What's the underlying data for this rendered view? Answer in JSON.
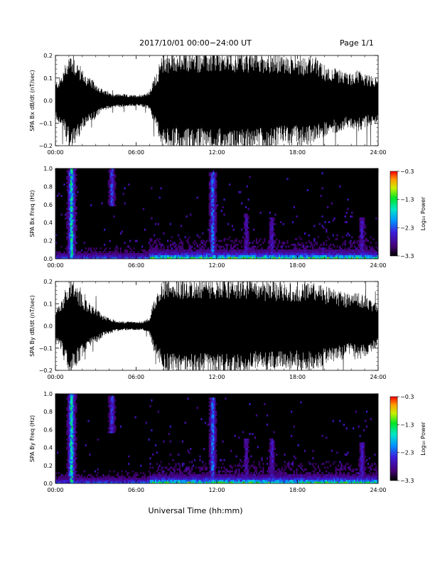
{
  "header": {
    "title": "2017/10/01   00:00−24:00 UT",
    "page": "Page 1/1"
  },
  "x_axis_title": "Universal Time (hh:mm)",
  "colors": {
    "trace": "#000000",
    "background": "#ffffff"
  },
  "chart_data": [
    {
      "type": "line",
      "ylabel": "SPA Bx dB/dt (nT/sec)",
      "xlim": [
        0,
        24
      ],
      "ylim": [
        -0.2,
        0.2
      ],
      "x_ticks": [
        "00:00",
        "06:00",
        "12:00",
        "18:00",
        "24:00"
      ],
      "y_ticks": [
        "0.2",
        "0.1",
        "0.0",
        "−0.1",
        "−0.2"
      ],
      "envelope": {
        "hours": [
          0,
          0.5,
          0.9,
          1.1,
          1.4,
          1.8,
          2.2,
          2.6,
          3.0,
          3.5,
          4.0,
          4.5,
          5.0,
          5.5,
          6.0,
          6.5,
          7.0,
          7.3,
          7.6,
          8.0,
          9.0,
          10.0,
          11.0,
          12.0,
          13.0,
          14.0,
          15.0,
          16.0,
          17.0,
          18.0,
          19.0,
          20.0,
          21.0,
          22.0,
          22.5,
          23.0,
          24.0
        ],
        "amplitude": [
          0.08,
          0.12,
          0.2,
          0.22,
          0.2,
          0.16,
          0.12,
          0.1,
          0.08,
          0.05,
          0.035,
          0.03,
          0.03,
          0.025,
          0.025,
          0.03,
          0.04,
          0.1,
          0.14,
          0.22,
          0.22,
          0.22,
          0.22,
          0.22,
          0.22,
          0.22,
          0.22,
          0.22,
          0.2,
          0.2,
          0.2,
          0.16,
          0.14,
          0.12,
          0.14,
          0.12,
          0.1
        ]
      }
    },
    {
      "type": "heatmap",
      "ylabel": "SPA Bx Freq (Hz)",
      "xlim": [
        0,
        24
      ],
      "ylim": [
        0,
        1.0
      ],
      "x_ticks": [
        "00:00",
        "06:00",
        "12:00",
        "18:00",
        "24:00"
      ],
      "y_ticks": [
        "1.0",
        "0.8",
        "0.6",
        "0.4",
        "0.2",
        "0.0"
      ],
      "colorbar": {
        "label": "Log₁₀ Power",
        "range": [
          -3.3,
          -0.3
        ],
        "ticks": [
          "−0.3",
          "−1.3",
          "−2.3",
          "−3.3"
        ]
      },
      "features": [
        {
          "hour": 1.2,
          "fmax": 1.0,
          "level": 0.8
        },
        {
          "hour": 4.2,
          "fmin": 0.58,
          "fmax": 1.0,
          "level": 0.45
        },
        {
          "hour": 11.7,
          "fmax": 0.95,
          "level": 0.55
        },
        {
          "hour": 14.2,
          "fmax": 0.5,
          "level": 0.3
        },
        {
          "hour": 16.1,
          "fmax": 0.45,
          "level": 0.35
        },
        {
          "hour": 22.8,
          "fmax": 0.45,
          "level": 0.35
        }
      ]
    },
    {
      "type": "line",
      "ylabel": "SPA By dB/dt (nT/sec)",
      "xlim": [
        0,
        24
      ],
      "ylim": [
        -0.2,
        0.2
      ],
      "x_ticks": [
        "00:00",
        "06:00",
        "12:00",
        "18:00",
        "24:00"
      ],
      "y_ticks": [
        "0.2",
        "0.1",
        "0.0",
        "−0.1",
        "−0.2"
      ],
      "envelope": {
        "hours": [
          0,
          0.5,
          0.9,
          1.1,
          1.4,
          1.8,
          2.2,
          2.6,
          3.0,
          3.5,
          4.0,
          4.5,
          5.0,
          5.5,
          6.0,
          6.5,
          7.0,
          7.3,
          7.6,
          8.0,
          9.0,
          10.0,
          11.0,
          12.0,
          13.0,
          14.0,
          15.0,
          16.0,
          17.0,
          18.0,
          19.0,
          20.0,
          21.0,
          22.0,
          22.5,
          23.0,
          24.0
        ],
        "amplitude": [
          0.08,
          0.12,
          0.2,
          0.22,
          0.2,
          0.16,
          0.12,
          0.1,
          0.08,
          0.05,
          0.035,
          0.025,
          0.02,
          0.02,
          0.02,
          0.02,
          0.04,
          0.12,
          0.16,
          0.22,
          0.22,
          0.22,
          0.22,
          0.22,
          0.22,
          0.22,
          0.2,
          0.2,
          0.2,
          0.2,
          0.2,
          0.18,
          0.16,
          0.14,
          0.16,
          0.14,
          0.1
        ]
      }
    },
    {
      "type": "heatmap",
      "ylabel": "SPA By Freq (Hz)",
      "xlim": [
        0,
        24
      ],
      "ylim": [
        0,
        1.0
      ],
      "x_ticks": [
        "00:00",
        "06:00",
        "12:00",
        "18:00",
        "24:00"
      ],
      "y_ticks": [
        "1.0",
        "0.8",
        "0.6",
        "0.4",
        "0.2",
        "0.0"
      ],
      "colorbar": {
        "label": "Log₁₀ Power",
        "range": [
          -3.3,
          -0.3
        ],
        "ticks": [
          "−0.3",
          "−1.3",
          "−2.3",
          "−3.3"
        ]
      },
      "features": [
        {
          "hour": 1.2,
          "fmax": 1.0,
          "level": 0.8
        },
        {
          "hour": 4.2,
          "fmin": 0.56,
          "fmax": 0.98,
          "level": 0.45
        },
        {
          "hour": 11.7,
          "fmax": 0.95,
          "level": 0.55
        },
        {
          "hour": 14.2,
          "fmax": 0.5,
          "level": 0.3
        },
        {
          "hour": 16.1,
          "fmax": 0.5,
          "level": 0.35
        },
        {
          "hour": 22.8,
          "fmax": 0.45,
          "level": 0.35
        }
      ]
    }
  ]
}
